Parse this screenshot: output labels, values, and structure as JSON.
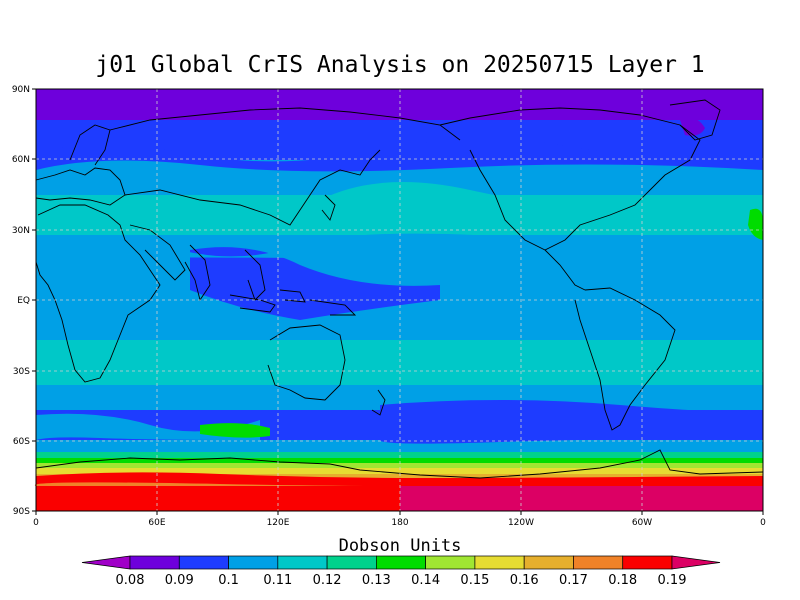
{
  "title": "j01 Global CrIS Analysis on 20250715 Layer 1",
  "colorbar": {
    "title": "Dobson Units",
    "levels": [
      "0.08",
      "0.09",
      "0.1",
      "0.11",
      "0.12",
      "0.13",
      "0.14",
      "0.15",
      "0.16",
      "0.17",
      "0.18",
      "0.19"
    ],
    "colors": [
      "#a000c8",
      "#6e00dc",
      "#1e3cff",
      "#00a0e6",
      "#00c8c8",
      "#00d28c",
      "#00dc00",
      "#a0e632",
      "#e6dc32",
      "#e6af2d",
      "#f08228",
      "#fa0000",
      "#dc0064"
    ]
  },
  "axes": {
    "lat_labels": [
      "90N",
      "60N",
      "30N",
      "EQ",
      "30S",
      "60S",
      "90S"
    ],
    "lon_labels": [
      "0",
      "60E",
      "120E",
      "180",
      "120W",
      "60W",
      "0"
    ]
  }
}
